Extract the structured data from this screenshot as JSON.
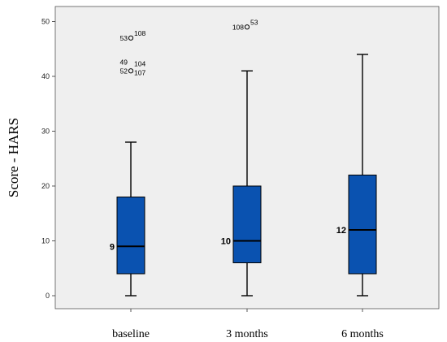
{
  "chart_data": {
    "type": "box",
    "ylabel": "Score - HARS",
    "xlabel": "",
    "ylim": [
      -2,
      52
    ],
    "yticks": [
      0,
      10,
      20,
      30,
      40,
      50
    ],
    "grid": false,
    "colors": {
      "plot_bg": "#efefef",
      "box_fill": "#0a52b0",
      "stroke": "#000000"
    },
    "categories": [
      "baseline",
      "3 months",
      "6 months"
    ],
    "boxes": [
      {
        "category": "baseline",
        "min": 0,
        "q1": 4,
        "median": 9,
        "q3": 18,
        "max": 28,
        "median_label": "9",
        "outliers": [
          {
            "value": 47,
            "labels_left": [
              "53"
            ],
            "labels_right": [
              "108"
            ]
          },
          {
            "value": 41,
            "labels_left": [
              "49",
              "52"
            ],
            "labels_right": [
              "104",
              "107"
            ]
          }
        ]
      },
      {
        "category": "3 months",
        "min": 0,
        "q1": 6,
        "median": 10,
        "q3": 20,
        "max": 41,
        "median_label": "10",
        "outliers": [
          {
            "value": 49,
            "labels_left": [
              "108"
            ],
            "labels_right": [
              "53"
            ]
          }
        ]
      },
      {
        "category": "6 months",
        "min": 0,
        "q1": 4,
        "median": 12,
        "q3": 22,
        "max": 44,
        "median_label": "12",
        "outliers": []
      }
    ]
  }
}
